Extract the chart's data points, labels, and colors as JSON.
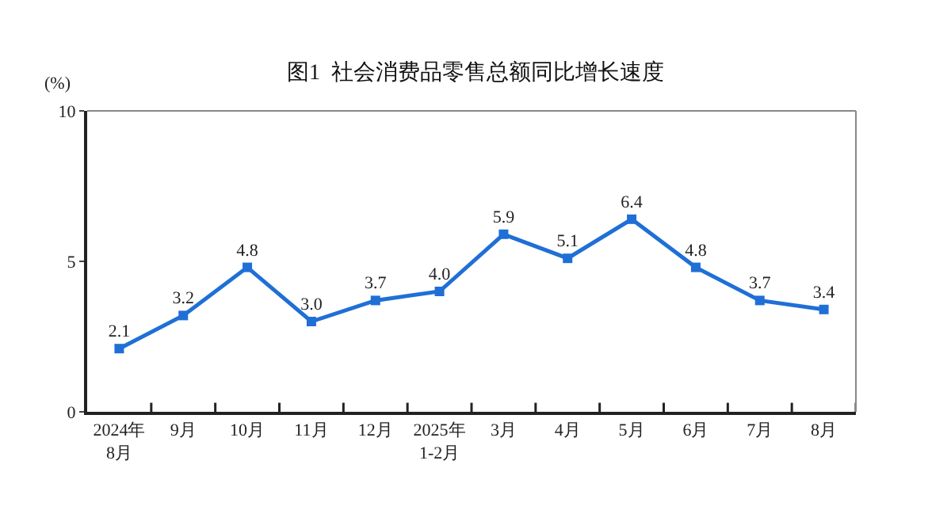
{
  "chart_data": {
    "type": "line",
    "title": "图1  社会消费品零售总额同比增长速度",
    "ylabel": "(%)",
    "categories": [
      "2024年\n8月",
      "9月",
      "10月",
      "11月",
      "12月",
      "2025年\n1-2月",
      "3月",
      "4月",
      "5月",
      "6月",
      "7月",
      "8月"
    ],
    "series": [
      {
        "color": "#1f6fd6",
        "values": [
          2.1,
          3.2,
          4.8,
          3.0,
          3.7,
          4.0,
          5.9,
          5.1,
          6.4,
          4.8,
          3.7,
          3.4
        ]
      }
    ],
    "value_labels": [
      "2.1",
      "3.2",
      "4.8",
      "3.0",
      "3.7",
      "4.0",
      "5.9",
      "5.1",
      "6.4",
      "4.8",
      "3.7",
      "3.4"
    ],
    "ylim": [
      0,
      10
    ],
    "yticks": [
      0,
      5,
      10
    ],
    "marker": "square",
    "line_style": "solid"
  }
}
